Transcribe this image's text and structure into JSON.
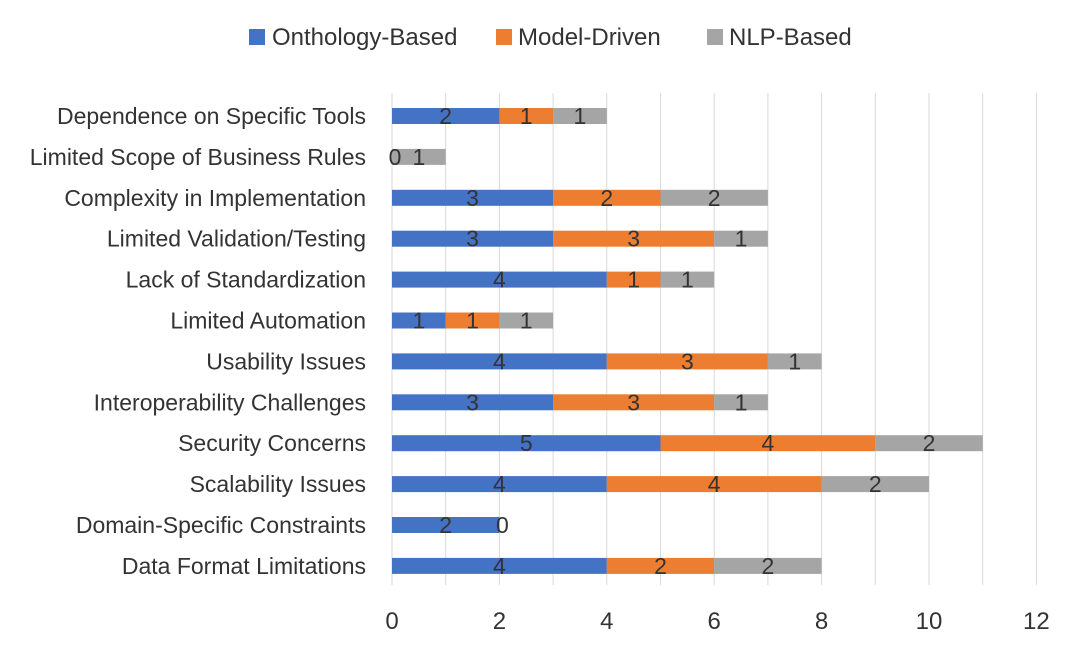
{
  "chart_data": {
    "type": "bar",
    "orientation": "horizontal",
    "stacked": true,
    "categories": [
      "Dependence on Specific Tools",
      "Limited Scope of Business Rules",
      "Complexity in Implementation",
      "Limited Validation/Testing",
      "Lack of Standardization",
      "Limited Automation",
      "Usability Issues",
      "Interoperability Challenges",
      "Security Concerns",
      "Scalability Issues",
      "Domain-Specific Constraints",
      "Data Format Limitations"
    ],
    "series": [
      {
        "name": "Onthology-Based",
        "color": "#4472C4",
        "values": [
          2,
          0,
          3,
          3,
          4,
          1,
          4,
          3,
          5,
          4,
          2,
          4
        ]
      },
      {
        "name": "Model-Driven",
        "color": "#ED7D31",
        "values": [
          1,
          null,
          2,
          3,
          1,
          1,
          3,
          3,
          4,
          4,
          0,
          2
        ]
      },
      {
        "name": "NLP-Based",
        "color": "#A5A5A5",
        "values": [
          1,
          1,
          2,
          1,
          1,
          1,
          1,
          1,
          2,
          2,
          null,
          2
        ]
      }
    ],
    "xlim": [
      0,
      12
    ],
    "x_ticks": [
      "0",
      "2",
      "4",
      "6",
      "8",
      "10",
      "12"
    ],
    "grid": true,
    "legend_position": "top"
  }
}
